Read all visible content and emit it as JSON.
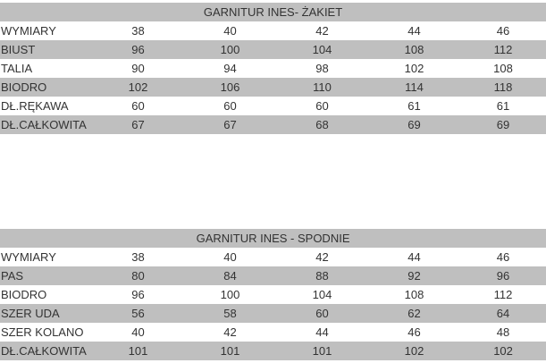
{
  "tables": [
    {
      "title": "GARNITUR INES- ŻAKIET",
      "rows": [
        [
          "WYMIARY",
          "38",
          "40",
          "42",
          "44",
          "46"
        ],
        [
          "BIUST",
          "96",
          "100",
          "104",
          "108",
          "112"
        ],
        [
          "TALIA",
          "90",
          "94",
          "98",
          "102",
          "108"
        ],
        [
          "BIODRO",
          "102",
          "106",
          "110",
          "114",
          "118"
        ],
        [
          "DŁ.RĘKAWA",
          "60",
          "60",
          "60",
          "61",
          "61"
        ],
        [
          "DŁ.CAŁKOWITA",
          "67",
          "67",
          "68",
          "69",
          "69"
        ]
      ]
    },
    {
      "title": "GARNITUR INES - SPODNIE",
      "rows": [
        [
          "WYMIARY",
          "38",
          "40",
          "42",
          "44",
          "46"
        ],
        [
          "PAS",
          "80",
          "84",
          "88",
          "92",
          "96"
        ],
        [
          "BIODRO",
          "96",
          "100",
          "104",
          "108",
          "112"
        ],
        [
          "SZER UDA",
          "56",
          "58",
          "60",
          "62",
          "64"
        ],
        [
          "SZER KOLANO",
          "40",
          "42",
          "44",
          "46",
          "48"
        ],
        [
          "DŁ.CAŁKOWITA",
          "101",
          "101",
          "101",
          "102",
          "102"
        ]
      ]
    }
  ],
  "colors": {
    "stripe": "#bfbfbf",
    "text": "#333333"
  }
}
